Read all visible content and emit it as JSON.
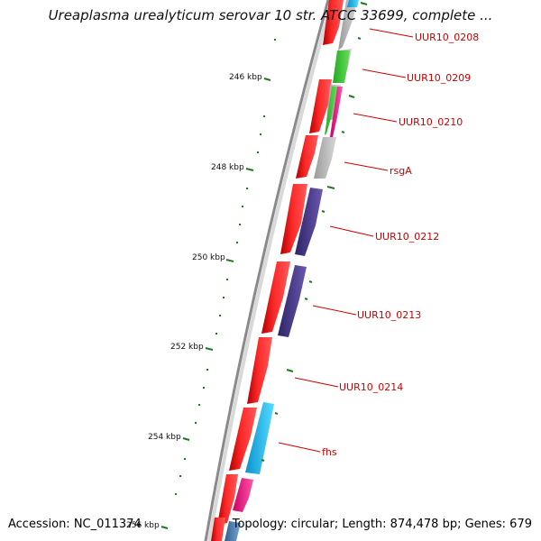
{
  "title": "Ureaplasma urealyticum serovar 10 str. ATCC 33699, complete ...",
  "footer": {
    "accession": "Accession: NC_011374",
    "summary": "Topology: circular; Length: 874,478 bp; Genes: 679"
  },
  "colors": {
    "backbone": "#8a8a8a",
    "forward_cds": "#ff1a1a",
    "tick": "#1e7a1e",
    "label": "#cc0000",
    "grey_gene": "#bdbdbd",
    "green_gene": "#44cc33",
    "purple_gene": "#4b3a8c",
    "cyan_gene": "#22bbee",
    "magenta_gene": "#ff1a99",
    "steel_gene": "#4a7fb0"
  },
  "ruler": [
    {
      "label": "246 kbp"
    },
    {
      "label": "248 kbp"
    },
    {
      "label": "250 kbp"
    },
    {
      "label": "252 kbp"
    },
    {
      "label": "254 kbp"
    },
    {
      "label": "256 kbp"
    }
  ],
  "gene_labels": [
    {
      "name": "UUR10_0208"
    },
    {
      "name": "UUR10_0209"
    },
    {
      "name": "UUR10_0210"
    },
    {
      "name": "rsgA"
    },
    {
      "name": "UUR10_0212"
    },
    {
      "name": "UUR10_0213"
    },
    {
      "name": "UUR10_0214"
    },
    {
      "name": "fhs"
    }
  ]
}
